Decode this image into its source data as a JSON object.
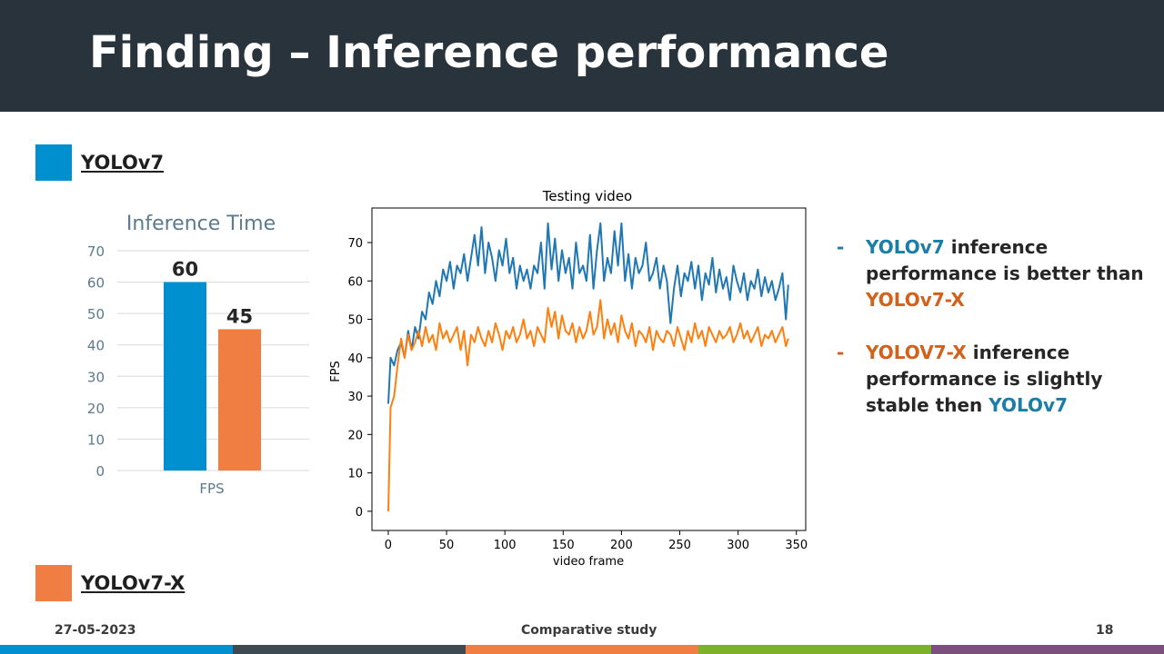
{
  "slide": {
    "title": "Finding – Inference performance",
    "legend": [
      {
        "label": "YOLOv7",
        "color": "#0090d0"
      },
      {
        "label": "YOLOv7-X",
        "color": "#f07d41"
      }
    ],
    "bullets": [
      {
        "dash": "-",
        "parts": [
          {
            "text": "YOLOv7",
            "color": "#1a7ea6"
          },
          {
            "text": " inference performance is better than ",
            "color": "#262626"
          },
          {
            "text": "YOLOv7-X",
            "color": "#d2611c"
          }
        ]
      },
      {
        "dash": "-",
        "parts": [
          {
            "text": "YOLOV7-X",
            "color": "#d2611c"
          },
          {
            "text": " inference performance is slightly stable then ",
            "color": "#262626"
          },
          {
            "text": "YOLOv7",
            "color": "#1a7ea6"
          }
        ]
      }
    ],
    "footer": {
      "date": "27-05-2023",
      "center": "Comparative study",
      "page": "18"
    },
    "bottom_bar_colors": [
      "#0090d0",
      "#3d4a52",
      "#f07d41",
      "#7cb22a",
      "#7d4f7e"
    ]
  },
  "chart_data": [
    {
      "type": "bar",
      "title": "Inference Time",
      "categories": [
        "FPS"
      ],
      "series": [
        {
          "values": [
            60
          ],
          "color": "#0090d0"
        },
        {
          "values": [
            45
          ],
          "color": "#f07d41"
        }
      ],
      "data_labels": [
        "60",
        "45"
      ],
      "ylim": [
        0,
        70
      ],
      "yticks": [
        0,
        10,
        20,
        30,
        40,
        50,
        60,
        70
      ],
      "grid": true
    },
    {
      "type": "line",
      "title": "Testing video",
      "xlabel": "video frame",
      "ylabel": "FPS",
      "xlim": [
        -14,
        358
      ],
      "ylim": [
        -5,
        79
      ],
      "xticks": [
        0,
        50,
        100,
        150,
        200,
        250,
        300,
        350
      ],
      "yticks": [
        0,
        10,
        20,
        30,
        40,
        50,
        60,
        70
      ],
      "series": [
        {
          "color": "#1f77b4",
          "x": [
            0,
            2,
            5,
            8,
            11,
            14,
            17,
            20,
            23,
            26,
            29,
            32,
            35,
            38,
            41,
            44,
            47,
            50,
            53,
            56,
            59,
            62,
            65,
            68,
            71,
            74,
            77,
            80,
            83,
            86,
            89,
            92,
            95,
            98,
            101,
            104,
            107,
            110,
            113,
            116,
            119,
            122,
            125,
            128,
            131,
            134,
            137,
            140,
            143,
            146,
            149,
            152,
            155,
            158,
            161,
            164,
            167,
            170,
            173,
            176,
            179,
            182,
            185,
            188,
            191,
            194,
            197,
            200,
            203,
            206,
            209,
            212,
            215,
            218,
            221,
            224,
            227,
            230,
            233,
            236,
            239,
            242,
            245,
            248,
            251,
            254,
            257,
            260,
            263,
            266,
            269,
            272,
            275,
            278,
            281,
            284,
            287,
            290,
            293,
            296,
            299,
            302,
            305,
            308,
            311,
            314,
            317,
            320,
            323,
            326,
            329,
            332,
            335,
            338,
            341,
            343
          ],
          "values": [
            28,
            40,
            38,
            42,
            44,
            40,
            47,
            42,
            48,
            45,
            52,
            50,
            57,
            54,
            60,
            56,
            63,
            60,
            65,
            58,
            64,
            62,
            67,
            60,
            66,
            72,
            64,
            74,
            62,
            70,
            66,
            60,
            68,
            64,
            71,
            62,
            66,
            58,
            64,
            60,
            63,
            58,
            64,
            62,
            70,
            58,
            75,
            63,
            71,
            60,
            68,
            62,
            66,
            58,
            70,
            62,
            64,
            60,
            72,
            58,
            68,
            75,
            60,
            66,
            62,
            73,
            64,
            75,
            60,
            67,
            58,
            66,
            62,
            64,
            70,
            60,
            62,
            66,
            58,
            64,
            60,
            49,
            58,
            64,
            56,
            62,
            60,
            65,
            58,
            64,
            55,
            62,
            59,
            66,
            57,
            63,
            58,
            61,
            55,
            64,
            60,
            57,
            62,
            55,
            60,
            58,
            63,
            56,
            61,
            57,
            60,
            55,
            58,
            62,
            50,
            59
          ]
        },
        {
          "color": "#ff7f0e",
          "x": [
            0,
            2,
            5,
            8,
            11,
            14,
            17,
            20,
            23,
            26,
            29,
            32,
            35,
            38,
            41,
            44,
            47,
            50,
            53,
            56,
            59,
            62,
            65,
            68,
            71,
            74,
            77,
            80,
            83,
            86,
            89,
            92,
            95,
            98,
            101,
            104,
            107,
            110,
            113,
            116,
            119,
            122,
            125,
            128,
            131,
            134,
            137,
            140,
            143,
            146,
            149,
            152,
            155,
            158,
            161,
            164,
            167,
            170,
            173,
            176,
            179,
            182,
            185,
            188,
            191,
            194,
            197,
            200,
            203,
            206,
            209,
            212,
            215,
            218,
            221,
            224,
            227,
            230,
            233,
            236,
            239,
            242,
            245,
            248,
            251,
            254,
            257,
            260,
            263,
            266,
            269,
            272,
            275,
            278,
            281,
            284,
            287,
            290,
            293,
            296,
            299,
            302,
            305,
            308,
            311,
            314,
            317,
            320,
            323,
            326,
            329,
            332,
            335,
            338,
            341,
            343
          ],
          "values": [
            0,
            27,
            30,
            38,
            45,
            40,
            46,
            42,
            44,
            47,
            43,
            48,
            44,
            46,
            42,
            49,
            45,
            47,
            44,
            46,
            48,
            42,
            47,
            38,
            46,
            44,
            48,
            45,
            43,
            47,
            44,
            49,
            46,
            42,
            47,
            45,
            48,
            44,
            46,
            50,
            45,
            47,
            43,
            48,
            46,
            44,
            53,
            48,
            52,
            45,
            51,
            47,
            46,
            49,
            44,
            48,
            45,
            47,
            52,
            46,
            48,
            55,
            45,
            50,
            46,
            49,
            44,
            51,
            47,
            45,
            49,
            43,
            47,
            46,
            44,
            48,
            42,
            47,
            45,
            44,
            47,
            46,
            43,
            48,
            45,
            42,
            47,
            44,
            49,
            45,
            47,
            43,
            48,
            46,
            44,
            47,
            45,
            46,
            48,
            44,
            46,
            49,
            45,
            47,
            44,
            46,
            48,
            43,
            46,
            45,
            47,
            44,
            46,
            48,
            43,
            45
          ]
        }
      ]
    }
  ]
}
